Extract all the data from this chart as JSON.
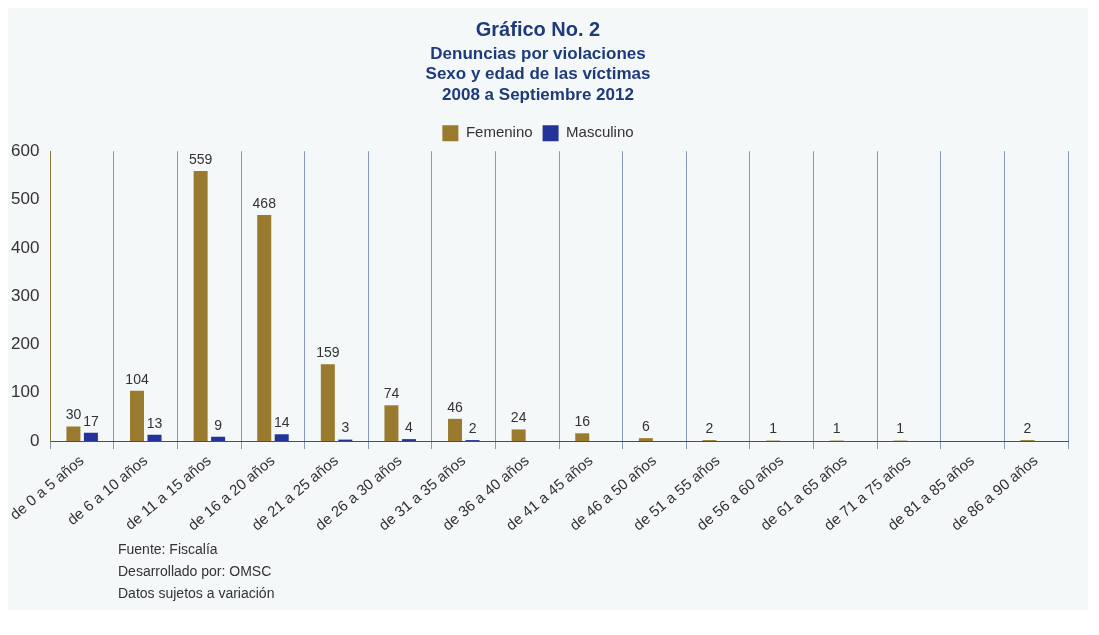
{
  "chart_data": {
    "type": "bar",
    "title": "Gráfico No. 2",
    "subtitle": "Denuncias por violaciones\nSexo y edad de las víctimas\n2008 a Septiembre 2012",
    "categories": [
      "de 0 a 5 años",
      "de 6 a 10 años",
      "de 11 a 15 años",
      "de 16 a 20 años",
      "de 21 a 25 años",
      "de 26 a 30 años",
      "de 31 a 35 años",
      "de 36 a 40 años",
      "de 41 a 45 años",
      "de 46 a 50 años",
      "de 51 a 55 años",
      "de 56 a 60 años",
      "de 61 a 65 años",
      "de 71 a 75 años",
      "de 81 a 85 años",
      "de 86 a 90 años"
    ],
    "series": [
      {
        "name": "Femenino",
        "color": "#9a7a2e",
        "values": [
          30,
          104,
          559,
          468,
          159,
          74,
          46,
          24,
          16,
          6,
          2,
          1,
          1,
          1,
          null,
          2
        ]
      },
      {
        "name": "Masculino",
        "color": "#23339a",
        "values": [
          17,
          13,
          9,
          14,
          3,
          4,
          2,
          null,
          null,
          null,
          null,
          null,
          null,
          null,
          null,
          null
        ]
      }
    ],
    "ylim": [
      0,
      600
    ],
    "yticks": [
      0,
      100,
      200,
      300,
      400,
      500,
      600
    ],
    "grid": "x",
    "legend": "top",
    "data_labels": true,
    "annotations": [
      "Fuente: Fiscalía",
      "Desarrollado por: OMSC",
      "Datos sujetos a variación"
    ]
  }
}
